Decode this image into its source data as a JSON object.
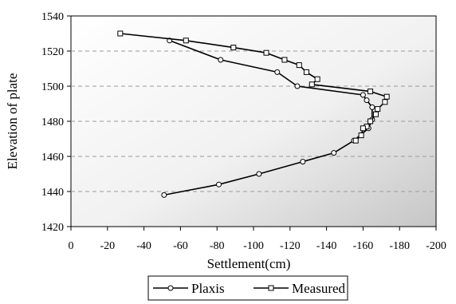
{
  "chart_data": {
    "type": "line",
    "title": "",
    "xlabel": "Settlement(cm)",
    "ylabel": "Elevation of plate",
    "xlim": [
      0,
      -200
    ],
    "ylim": [
      1420,
      1540
    ],
    "x_ticks": [
      "0",
      "-20",
      "-40",
      "-60",
      "-80",
      "-100",
      "-120",
      "-140",
      "-160",
      "-180",
      "-200"
    ],
    "y_ticks": [
      "1540",
      "1520",
      "1500",
      "1480",
      "1460",
      "1440",
      "1420"
    ],
    "grid": "horizontal dashed",
    "legend_position": "bottom",
    "series": [
      {
        "name": "Plaxis",
        "marker": "circle",
        "color": "#000000",
        "points": [
          {
            "x": -51,
            "y": 1438
          },
          {
            "x": -81,
            "y": 1444
          },
          {
            "x": -103,
            "y": 1450
          },
          {
            "x": -127,
            "y": 1457
          },
          {
            "x": -144,
            "y": 1462
          },
          {
            "x": -155,
            "y": 1469
          },
          {
            "x": -163,
            "y": 1476
          },
          {
            "x": -165,
            "y": 1481
          },
          {
            "x": -165,
            "y": 1488
          },
          {
            "x": -162,
            "y": 1492
          },
          {
            "x": -160,
            "y": 1495
          },
          {
            "x": -124,
            "y": 1500
          },
          {
            "x": -113,
            "y": 1508
          },
          {
            "x": -82,
            "y": 1515
          },
          {
            "x": -54,
            "y": 1526
          }
        ]
      },
      {
        "name": "Measured",
        "marker": "square",
        "color": "#000000",
        "points": [
          {
            "x": -27,
            "y": 1530
          },
          {
            "x": -63,
            "y": 1526
          },
          {
            "x": -89,
            "y": 1522
          },
          {
            "x": -107,
            "y": 1519
          },
          {
            "x": -117,
            "y": 1515
          },
          {
            "x": -125,
            "y": 1512
          },
          {
            "x": -129,
            "y": 1508
          },
          {
            "x": -135,
            "y": 1504
          },
          {
            "x": -132,
            "y": 1501
          },
          {
            "x": -164,
            "y": 1497
          },
          {
            "x": -173,
            "y": 1494
          },
          {
            "x": -172,
            "y": 1491
          },
          {
            "x": -168,
            "y": 1487
          },
          {
            "x": -167,
            "y": 1484
          },
          {
            "x": -164,
            "y": 1480
          },
          {
            "x": -162,
            "y": 1477
          },
          {
            "x": -160,
            "y": 1476
          },
          {
            "x": -159,
            "y": 1472
          },
          {
            "x": -156,
            "y": 1469
          }
        ]
      }
    ]
  }
}
